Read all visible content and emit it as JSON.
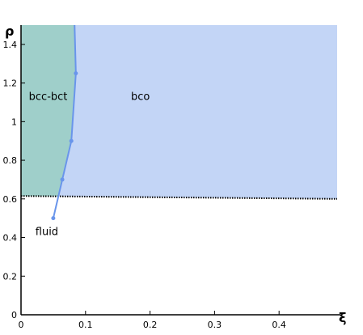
{
  "chart_data": {
    "type": "area",
    "title": "",
    "xlabel": "ξ",
    "ylabel": "ρ",
    "xlim": [
      0,
      0.49
    ],
    "ylim": [
      0,
      1.5
    ],
    "grid": false,
    "x_ticks": [
      0,
      0.1,
      0.2,
      0.3,
      0.4
    ],
    "x_tick_labels": [
      "0",
      "0.1",
      "0.2",
      "0.3",
      "0.4"
    ],
    "y_ticks": [
      0,
      0.2,
      0.4,
      0.6,
      0.8,
      1.0,
      1.2,
      1.4
    ],
    "y_tick_labels": [
      "0",
      "0.2",
      "0.4",
      "0.6",
      "0.8",
      "1",
      "1.2",
      "1.4"
    ],
    "regions": [
      {
        "label": "bcc-bct",
        "color": "#9fcfca",
        "label_pos": [
          0.042,
          1.13
        ]
      },
      {
        "label": "bco",
        "color": "#c3d5f6",
        "label_pos": [
          0.185,
          1.13
        ]
      },
      {
        "label": "fluid",
        "color": "#ffffff",
        "label_pos": [
          0.04,
          0.43
        ]
      }
    ],
    "phase_boundary": {
      "color": "#6995eb",
      "x": [
        0.05,
        0.064,
        0.078,
        0.085,
        0.083
      ],
      "y": [
        0.5,
        0.7,
        0.9,
        1.25,
        1.5
      ],
      "markers": [
        [
          0.05,
          0.5
        ],
        [
          0.064,
          0.7
        ],
        [
          0.078,
          0.9
        ],
        [
          0.085,
          1.25
        ]
      ]
    },
    "fluid_boundary": {
      "style": "dotted",
      "x": [
        0,
        0.49
      ],
      "y": [
        0.615,
        0.6
      ]
    }
  }
}
